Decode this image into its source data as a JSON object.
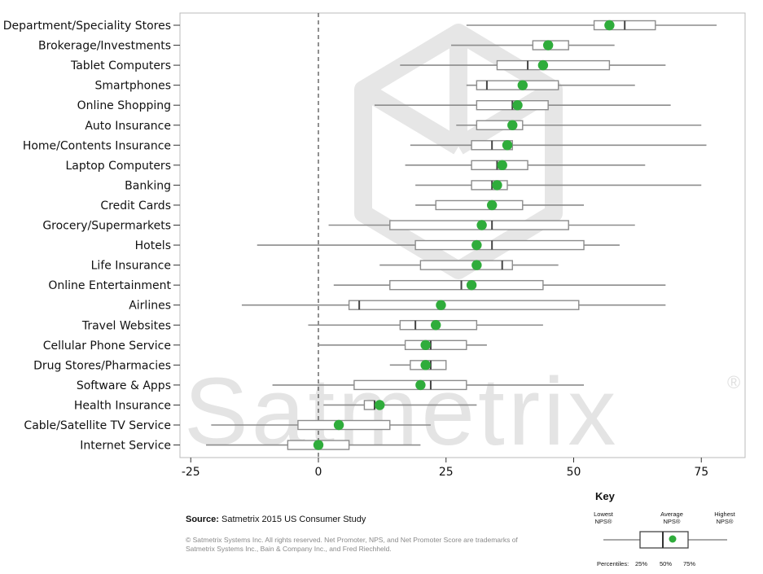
{
  "chart_data": {
    "type": "boxplot",
    "categories": [
      "Department/Speciality Stores",
      "Brokerage/Investments",
      "Tablet Computers",
      "Smartphones",
      "Online Shopping",
      "Auto Insurance",
      "Home/Contents Insurance",
      "Laptop Computers",
      "Banking",
      "Credit Cards",
      "Grocery/Supermarkets",
      "Hotels",
      "Life Insurance",
      "Online Entertainment",
      "Airlines",
      "Travel Websites",
      "Cellular Phone Service",
      "Drug Stores/Pharmacies",
      "Software & Apps",
      "Health Insurance",
      "Cable/Satellite TV Service",
      "Internet Service"
    ],
    "series": [
      {
        "min": 29,
        "q1": 54,
        "median": 60,
        "q3": 66,
        "max": 78,
        "average": 57
      },
      {
        "min": 26,
        "q1": 42,
        "median": 45,
        "q3": 49,
        "max": 58,
        "average": 45
      },
      {
        "min": 16,
        "q1": 35,
        "median": 41,
        "q3": 57,
        "max": 68,
        "average": 44
      },
      {
        "min": 29,
        "q1": 31,
        "median": 33,
        "q3": 47,
        "max": 62,
        "average": 40
      },
      {
        "min": 11,
        "q1": 31,
        "median": 38,
        "q3": 45,
        "max": 69,
        "average": 39
      },
      {
        "min": 27,
        "q1": 31,
        "median": 38,
        "q3": 40,
        "max": 75,
        "average": 38
      },
      {
        "min": 18,
        "q1": 30,
        "median": 34,
        "q3": 38,
        "max": 76,
        "average": 37
      },
      {
        "min": 17,
        "q1": 30,
        "median": 35,
        "q3": 41,
        "max": 64,
        "average": 36
      },
      {
        "min": 19,
        "q1": 30,
        "median": 34,
        "q3": 37,
        "max": 75,
        "average": 35
      },
      {
        "min": 19,
        "q1": 23,
        "median": 34,
        "q3": 40,
        "max": 52,
        "average": 34
      },
      {
        "min": 2,
        "q1": 14,
        "median": 34,
        "q3": 49,
        "max": 62,
        "average": 32
      },
      {
        "min": -12,
        "q1": 19,
        "median": 34,
        "q3": 52,
        "max": 59,
        "average": 31
      },
      {
        "min": 12,
        "q1": 20,
        "median": 36,
        "q3": 38,
        "max": 47,
        "average": 31
      },
      {
        "min": 3,
        "q1": 14,
        "median": 28,
        "q3": 44,
        "max": 68,
        "average": 30
      },
      {
        "min": -15,
        "q1": 6,
        "median": 8,
        "q3": 51,
        "max": 68,
        "average": 24
      },
      {
        "min": -2,
        "q1": 16,
        "median": 19,
        "q3": 31,
        "max": 44,
        "average": 23
      },
      {
        "min": 0,
        "q1": 17,
        "median": 22,
        "q3": 29,
        "max": 33,
        "average": 21
      },
      {
        "min": 14,
        "q1": 18,
        "median": 22,
        "q3": 25,
        "max": 25,
        "average": 21
      },
      {
        "min": -9,
        "q1": 7,
        "median": 22,
        "q3": 29,
        "max": 52,
        "average": 20
      },
      {
        "min": 1,
        "q1": 9,
        "median": 11,
        "q3": 11,
        "max": 31,
        "average": 12
      },
      {
        "min": -21,
        "q1": -4,
        "median": 4,
        "q3": 14,
        "max": 22,
        "average": 4
      },
      {
        "min": -22,
        "q1": -6,
        "median": 0,
        "q3": 6,
        "max": 20,
        "average": 0
      }
    ],
    "xlim": [
      -27,
      84
    ],
    "xticks": [
      "-25",
      "0",
      "25",
      "50",
      "75"
    ],
    "reference_line": 0,
    "grid": false,
    "legend": "key box at bottom-right",
    "colors": {
      "average_dot": "#2fac3b",
      "whisker": "#8c8c8c",
      "box": "#8c8c8c",
      "reference": "#555555",
      "panel_border": "#bbbbbb"
    }
  },
  "watermark": {
    "text": "Satmetrix",
    "mark": "®"
  },
  "source": {
    "label": "Source:",
    "text": "Satmetrix 2015 US Consumer Study"
  },
  "copyright": "© Satmetrix Systems Inc. All rights reserved. Net Promoter, NPS, and Net Promoter Score are trademarks of Satmetrix Systems Inc., Bain & Company Inc., and Fred Riechheld.",
  "key": {
    "title": "Key",
    "lowest": "Lowest\nNPS®",
    "average": "Average\nNPS®",
    "highest": "Highest\nNPS®",
    "percentiles_label": "Percentiles:",
    "p25": "25%",
    "p50": "50%",
    "p75": "75%"
  }
}
